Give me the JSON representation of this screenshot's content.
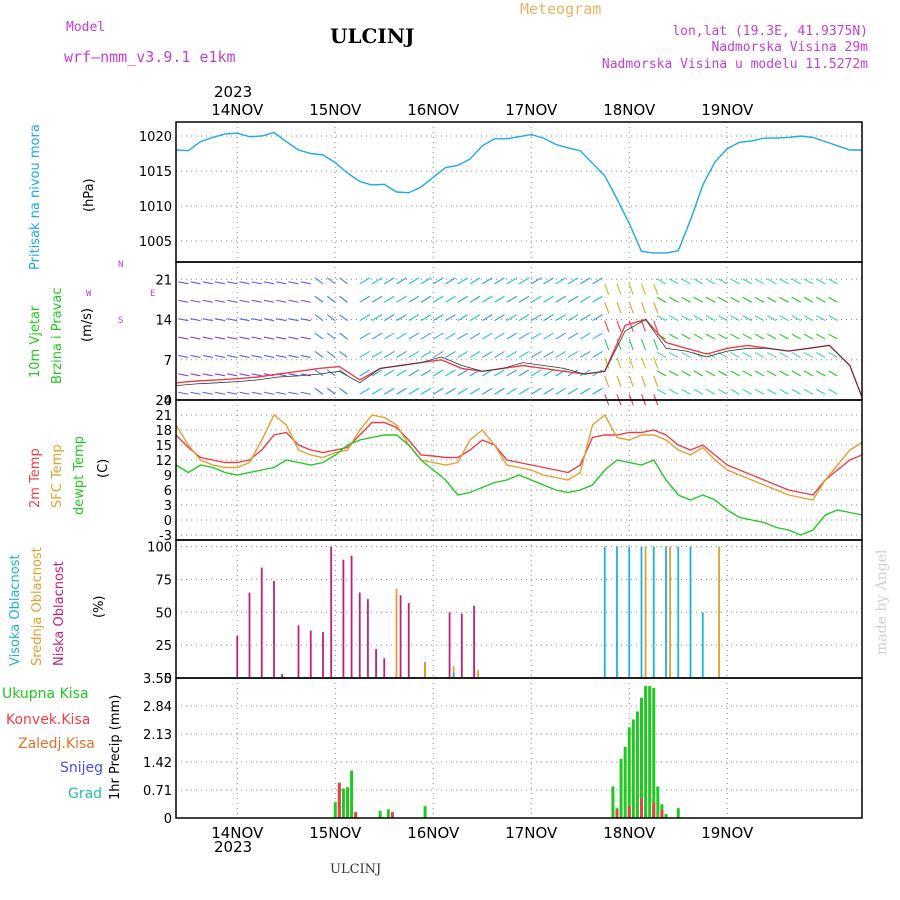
{
  "header": {
    "model_label": "Model",
    "model_name": "wrf–nmm_v3.9.1  e1km",
    "station": "ULCINJ",
    "meteogram": "Meteogram",
    "lonlat": "lon,lat (19.3E, 41.9375N)",
    "altitude": "Nadmorska Visina 29m",
    "model_altitude": "Nadmorska Visina u modelu 11.5272m",
    "top_year": "2023",
    "bottom_year": "2023",
    "footer_station": "ULCINJ",
    "watermark": "made by Angel"
  },
  "colors": {
    "pressure": "#1ea8e8",
    "temp2m": "#e8404a",
    "sfc": "#e0a030",
    "dewpt": "#22c822",
    "cloud_high": "#1eb0e0",
    "cloud_mid": "#e0a030",
    "cloud_low": "#c0207a",
    "precip_total": "#22c822",
    "precip_conv": "#e8404a",
    "precip_frozen": "#e0702a",
    "snow": "#4a4ae8",
    "graupel": "#20c0b0",
    "wind_label": "#c040d0"
  },
  "labels": {
    "pressure": [
      "Pritisak na nivou mora",
      "(hPa)"
    ],
    "wind": [
      "10m Vjetar",
      "Brzina i Pravac",
      "(m/s)"
    ],
    "compass": {
      "n": "N",
      "s": "S",
      "w": "W",
      "e": "E"
    },
    "temp": [
      "2m Temp",
      "SFC Temp",
      "dewpt Temp",
      "(C)"
    ],
    "cloud": [
      "Visoka Oblacnost",
      "Srednja Oblacnost",
      "Niska Oblacnost",
      "(%)"
    ],
    "precip_axis": "1hr Precip (mm)",
    "precip_legend": [
      "Ukupna Kisa",
      "Konvek.Kisa",
      "Zaledj.Kisa",
      "Snijeg",
      "Grad"
    ]
  },
  "chart_data": {
    "type": "line",
    "x_days": [
      "14NOV",
      "15NOV",
      "16NOV",
      "17NOV",
      "18NOV",
      "19NOV"
    ],
    "x_range_hours": [
      -15,
      153
    ],
    "panels": [
      {
        "name": "pressure",
        "ylim": [
          1002,
          1022
        ],
        "yticks": [
          1005,
          1010,
          1015,
          1020
        ],
        "series": [
          {
            "key": "pressure",
            "x": [
              -15,
              -12,
              -9,
              -6,
              -3,
              0,
              3,
              6,
              9,
              12,
              15,
              18,
              21,
              24,
              27,
              30,
              33,
              36,
              39,
              42,
              45,
              48,
              51,
              54,
              57,
              60,
              63,
              66,
              69,
              72,
              75,
              78,
              81,
              84,
              87,
              90,
              93,
              96,
              99,
              102,
              105,
              108,
              111,
              114,
              117,
              120,
              123,
              126,
              129,
              132,
              135,
              138,
              141,
              144,
              147,
              150,
              153
            ],
            "y": [
              1018,
              1017.9,
              1019.2,
              1019.8,
              1020.3,
              1020.4,
              1019.9,
              1020,
              1020.5,
              1019.2,
              1018,
              1017.5,
              1017.3,
              1016.2,
              1014.7,
              1013.5,
              1013,
              1013.1,
              1012,
              1011.9,
              1012.7,
              1014.1,
              1015.5,
              1015.8,
              1016.7,
              1018.6,
              1019.6,
              1019.6,
              1019.9,
              1020.2,
              1019.7,
              1018.8,
              1018.3,
              1017.9,
              1016.1,
              1014.3,
              1011,
              1007.5,
              1003.5,
              1003.3,
              1003.3,
              1003.6,
              1008,
              1013,
              1016.3,
              1018.2,
              1019.1,
              1019.3,
              1019.7,
              1019.7,
              1019.8,
              1020,
              1019.8,
              1019.2,
              1018.6,
              1018,
              1018
            ]
          }
        ]
      },
      {
        "name": "wind",
        "ylim": [
          0,
          24
        ],
        "yticks": [
          0,
          7,
          14,
          21
        ],
        "series": [
          {
            "key": "speed_red",
            "x": [
              -15,
              -10,
              -5,
              0,
              5,
              10,
              15,
              20,
              25,
              30,
              35,
              40,
              45,
              50,
              55,
              60,
              65,
              70,
              75,
              80,
              85,
              90,
              95,
              100,
              105,
              110,
              115,
              120,
              125,
              130,
              135,
              140,
              145,
              150,
              153
            ],
            "y": [
              3,
              3.3,
              3.5,
              3.7,
              4,
              4.5,
              5,
              5.5,
              5.8,
              3.5,
              5.5,
              6,
              6.5,
              7,
              5.5,
              5,
              5.5,
              6,
              5.5,
              5,
              4.5,
              5,
              13,
              14,
              10,
              9,
              8,
              9,
              9.5,
              9,
              8.5,
              9,
              9.5,
              6,
              0.5
            ]
          },
          {
            "key": "speed_black",
            "x": [
              -15,
              -10,
              -5,
              0,
              5,
              10,
              15,
              20,
              25,
              30,
              35,
              40,
              45,
              50,
              55,
              60,
              65,
              70,
              75,
              80,
              85,
              90,
              95,
              100,
              105,
              110,
              115,
              120,
              125,
              130,
              135,
              140,
              145,
              150,
              153
            ],
            "y": [
              2.5,
              2.8,
              3,
              3.2,
              3.5,
              4,
              4.2,
              4.5,
              5,
              3,
              5.5,
              6,
              6.5,
              7.5,
              6,
              5,
              5.5,
              6.5,
              6,
              5.5,
              4.5,
              5,
              12,
              14,
              9,
              8.5,
              7.5,
              8.5,
              9,
              9,
              8.5,
              9,
              9.5,
              6,
              0.5
            ]
          }
        ]
      },
      {
        "name": "temperature",
        "ylim": [
          -4,
          24
        ],
        "yticks": [
          -3,
          0,
          3,
          6,
          9,
          12,
          15,
          18,
          21,
          24
        ],
        "series": [
          {
            "key": "temp2m",
            "x": [
              -15,
              -12,
              -9,
              -6,
              -3,
              0,
              3,
              6,
              9,
              12,
              15,
              18,
              21,
              24,
              27,
              30,
              33,
              36,
              39,
              42,
              45,
              48,
              51,
              54,
              57,
              60,
              63,
              66,
              69,
              72,
              75,
              78,
              81,
              84,
              87,
              90,
              93,
              96,
              99,
              102,
              105,
              108,
              111,
              114,
              117,
              120,
              123,
              126,
              129,
              132,
              135,
              138,
              141,
              144,
              147,
              150,
              153
            ],
            "y": [
              17,
              14.5,
              12.5,
              12,
              11.5,
              11.5,
              12,
              14,
              17,
              17.5,
              15,
              14,
              13.5,
              14,
              14.5,
              17,
              19.5,
              19.5,
              18.5,
              16,
              13,
              12.8,
              12.5,
              12.5,
              14,
              16,
              15,
              12,
              11.5,
              11,
              10.5,
              10,
              9.5,
              11,
              16.5,
              17,
              17,
              17.5,
              17.5,
              18,
              17,
              15,
              14,
              15,
              13,
              11,
              10,
              9,
              8,
              7,
              6,
              5.5,
              5,
              8,
              10,
              12,
              13
            ]
          },
          {
            "key": "sfc",
            "x": [
              -15,
              -12,
              -9,
              -6,
              -3,
              0,
              3,
              6,
              9,
              12,
              15,
              18,
              21,
              24,
              27,
              30,
              33,
              36,
              39,
              42,
              45,
              48,
              51,
              54,
              57,
              60,
              63,
              66,
              69,
              72,
              75,
              78,
              81,
              84,
              87,
              90,
              93,
              96,
              99,
              102,
              105,
              108,
              111,
              114,
              117,
              120,
              123,
              126,
              129,
              132,
              135,
              138,
              141,
              144,
              147,
              150,
              153
            ],
            "y": [
              19,
              15,
              12,
              11,
              10.5,
              10.5,
              11.5,
              16,
              21,
              19,
              14,
              13,
              12.5,
              13.5,
              14,
              18,
              21,
              20.5,
              19,
              15,
              12,
              11.5,
              11,
              11.5,
              16,
              18,
              15,
              11,
              10.5,
              10,
              9,
              8.5,
              8,
              9.5,
              19,
              21,
              16.5,
              16,
              17,
              17,
              16,
              14,
              13,
              14.5,
              12,
              10,
              9,
              8,
              7,
              6,
              5,
              4.5,
              4,
              8,
              11,
              14,
              15.5
            ]
          },
          {
            "key": "dewpt",
            "x": [
              -15,
              -12,
              -9,
              -6,
              -3,
              0,
              3,
              6,
              9,
              12,
              15,
              18,
              21,
              24,
              27,
              30,
              33,
              36,
              39,
              42,
              45,
              48,
              51,
              54,
              57,
              60,
              63,
              66,
              69,
              72,
              75,
              78,
              81,
              84,
              87,
              90,
              93,
              96,
              99,
              102,
              105,
              108,
              111,
              114,
              117,
              120,
              123,
              126,
              129,
              132,
              135,
              138,
              141,
              144,
              147,
              150,
              153
            ],
            "y": [
              11,
              9.5,
              11,
              10.5,
              9.5,
              9,
              9.5,
              10,
              10.5,
              12,
              11.5,
              11,
              11.5,
              13,
              15,
              16,
              16.5,
              17,
              17,
              15,
              12,
              10,
              8,
              5,
              5.5,
              6.5,
              7.5,
              8,
              9,
              8,
              7,
              6,
              5.5,
              6,
              7,
              10,
              12,
              11.5,
              11,
              12,
              8,
              5,
              4,
              5,
              4,
              2,
              0.5,
              0,
              -0.5,
              -1.5,
              -2,
              -3,
              -2,
              1,
              2,
              1.5,
              1
            ]
          }
        ]
      },
      {
        "name": "cloud",
        "ylim": [
          0,
          105
        ],
        "yticks": [
          0,
          25,
          50,
          75,
          100
        ],
        "series": [
          {
            "key": "cloud_low",
            "x": [
              0,
              3,
              6,
              9,
              11,
              15,
              18,
              21,
              23,
              26,
              28,
              30,
              32,
              34,
              36,
              40,
              42,
              46,
              52,
              55,
              58
            ],
            "y": [
              32,
              65,
              84,
              74,
              3,
              40,
              36,
              35,
              100,
              90,
              93,
              65,
              60,
              22,
              15,
              63,
              57,
              12,
              50,
              49,
              55
            ]
          },
          {
            "key": "cloud_mid",
            "x": [
              39,
              46,
              53,
              59,
              100,
              106,
              118
            ],
            "y": [
              68,
              12,
              9,
              6,
              100,
              100,
              100
            ]
          },
          {
            "key": "cloud_high",
            "x": [
              53,
              90,
              93,
              96,
              99,
              102,
              105,
              108,
              111,
              114
            ],
            "y": [
              4,
              100,
              100,
              100,
              100,
              100,
              100,
              100,
              100,
              50
            ]
          }
        ]
      },
      {
        "name": "precip",
        "ylim": [
          0,
          3.55
        ],
        "yticks": [
          0,
          0.71,
          1.42,
          2.13,
          2.84,
          3.55
        ],
        "series": [
          {
            "key": "precip_total",
            "x": [
              24,
              25,
              26,
              27,
              28,
              35,
              37,
              46,
              92,
              93,
              94,
              95,
              96,
              97,
              98,
              99,
              100,
              101,
              102,
              103,
              104,
              105,
              108
            ],
            "y": [
              0.4,
              0.9,
              0.75,
              0.78,
              1.2,
              0.18,
              0.22,
              0.3,
              0.8,
              0.25,
              1.5,
              1.8,
              2.3,
              2.5,
              2.7,
              3.05,
              3.35,
              3.35,
              3.3,
              0.8,
              0.35,
              0.1,
              0.25
            ]
          },
          {
            "key": "precip_conv",
            "x": [
              25,
              29,
              38,
              93,
              96,
              99,
              102,
              104
            ],
            "y": [
              0.88,
              0.15,
              0.15,
              0.2,
              0.3,
              0.5,
              0.4,
              0.2
            ]
          }
        ]
      }
    ]
  }
}
